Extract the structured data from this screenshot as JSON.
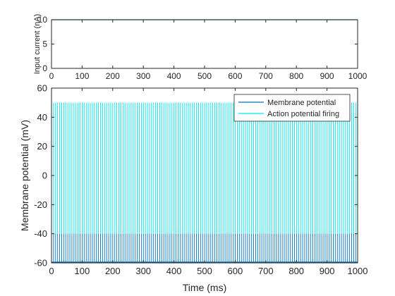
{
  "chart_data": [
    {
      "type": "line",
      "title": "",
      "xlabel": "",
      "ylabel": "Input current (nA)",
      "xlim": [
        0,
        1000
      ],
      "ylim": [
        0,
        10
      ],
      "x_ticks": [
        "0",
        "100",
        "200",
        "300",
        "400",
        "500",
        "600",
        "700",
        "800",
        "900",
        "1000"
      ],
      "y_ticks": [
        "0",
        "5",
        "10"
      ],
      "grid": false,
      "series": [
        {
          "color": "#0072BD",
          "x": [
            0,
            1000
          ],
          "values": [
            10,
            10
          ]
        }
      ]
    },
    {
      "type": "line",
      "title": "",
      "xlabel": "Time (ms)",
      "ylabel": "Membrane potential (mV)",
      "xlim": [
        0,
        1000
      ],
      "ylim": [
        -60,
        60
      ],
      "x_ticks": [
        "0",
        "100",
        "200",
        "300",
        "400",
        "500",
        "600",
        "700",
        "800",
        "900",
        "1000"
      ],
      "y_ticks": [
        "-60",
        "-40",
        "-20",
        "0",
        "20",
        "40",
        "60"
      ],
      "grid": false,
      "legend_position": "top-right",
      "spike_interval_ms": 6.67,
      "series": [
        {
          "name": "Membrane potential",
          "color": "#0072BD",
          "min": -60,
          "max": -40
        },
        {
          "name": "Action potential firing",
          "color": "#00E5EE",
          "min": -40,
          "max": 50
        }
      ]
    }
  ]
}
